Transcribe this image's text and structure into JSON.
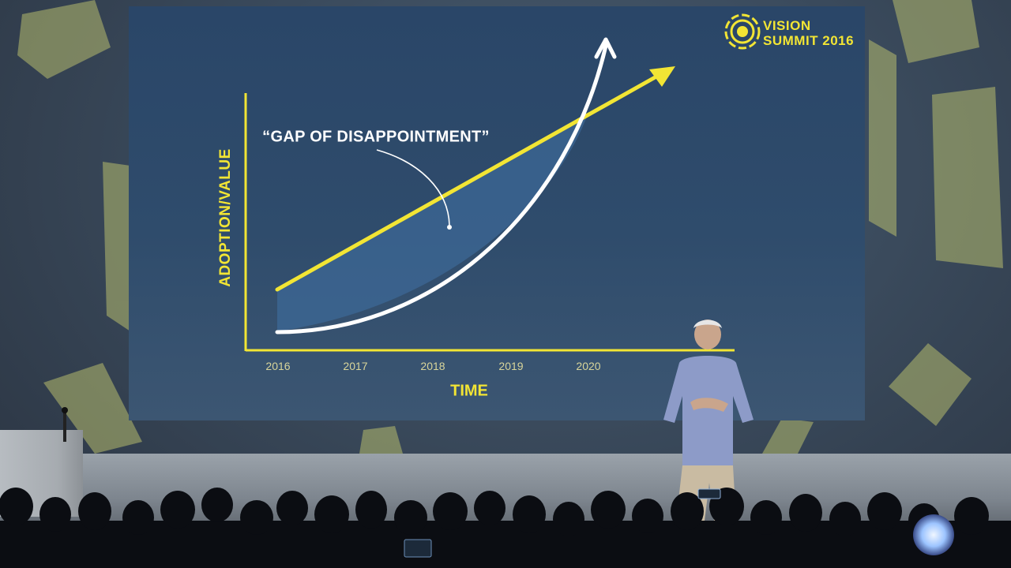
{
  "logo": {
    "line1": "VISION",
    "line2": "SUMMIT 2016",
    "icon": "summit-sun-icon"
  },
  "slide": {
    "annotation": "“GAP OF DISAPPOINTMENT”",
    "ylabel": "ADOPTION/VALUE",
    "xlabel": "TIME",
    "ticks": [
      "2016",
      "2017",
      "2018",
      "2019",
      "2020"
    ]
  },
  "colors": {
    "accent": "#f2e534",
    "curve": "#ffffff",
    "slide_bg": "#2b476a",
    "gap_fill": "#3d6a98"
  }
}
